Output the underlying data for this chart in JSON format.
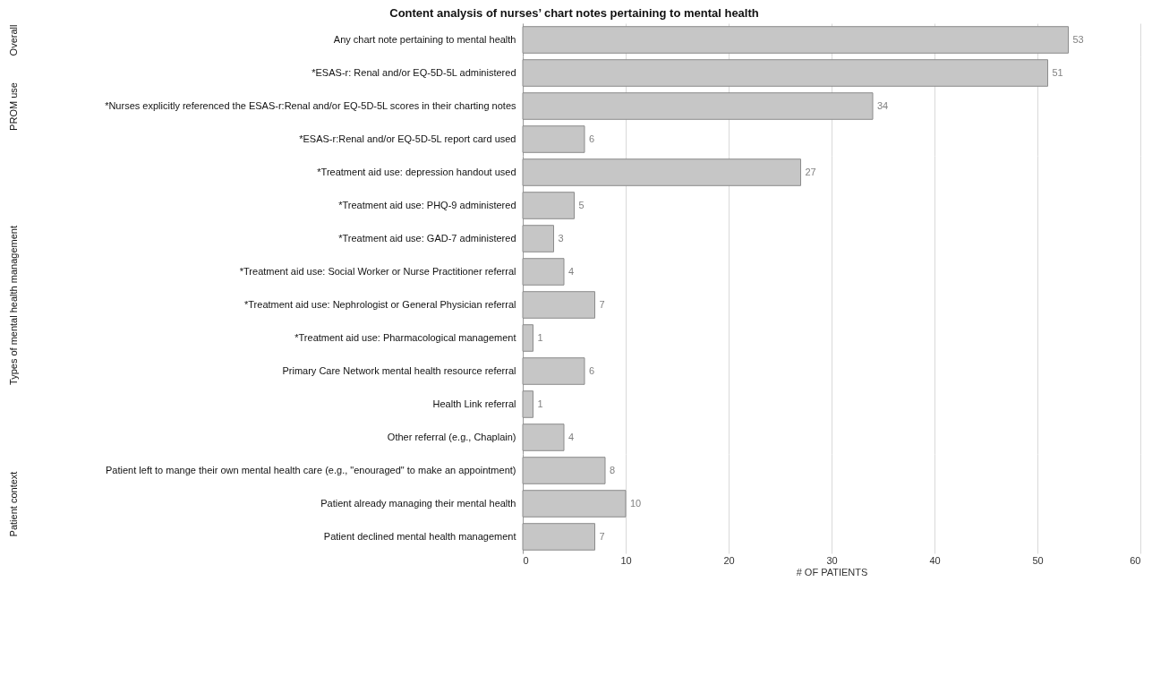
{
  "chart_data": [
    {
      "type": "bar",
      "orientation": "horizontal",
      "title": "Content analysis of nurses’ chart notes pertaining to mental health",
      "ylabel": "Overall",
      "categories": [
        "Any chart note pertaining to mental health"
      ],
      "values": [
        53
      ],
      "color": "#c6c6c6",
      "xlim": [
        0,
        60
      ],
      "xticks": [
        0,
        10,
        20,
        30,
        40,
        50,
        60
      ],
      "grid": "x",
      "data_labels": true,
      "tick_labels": "y"
    },
    {
      "type": "bar",
      "orientation": "horizontal",
      "ylabel": "PROM use",
      "categories": [
        "*ESAS-r: Renal and/or EQ-5D-5L administered",
        "*Nurses explicitly referenced the ESAS-r:Renal and/or EQ-5D-5L scores in their charting notes",
        "*ESAS-r:Renal and/or EQ-5D-5L report card used"
      ],
      "values": [
        51,
        34,
        6
      ],
      "color": "#c6c6c6",
      "xlim": [
        0,
        60
      ],
      "xticks": [
        0,
        10,
        20,
        30,
        40,
        50,
        60
      ],
      "grid": "x",
      "data_labels": true,
      "tick_labels": "y"
    },
    {
      "type": "bar",
      "orientation": "horizontal",
      "ylabel": "Types of mental health management",
      "categories": [
        "*Treatment aid use: depression handout used",
        "*Treatment aid use: PHQ-9 administered",
        "*Treatment aid use: GAD-7 administered",
        "*Treatment aid use: Social Worker or Nurse Practitioner referral",
        "*Treatment aid use: Nephrologist or General Physician referral",
        "*Treatment aid use: Pharmacological management",
        "Primary Care Network mental health resource referral",
        "Health Link referral",
        "Other referral (e.g., Chaplain)"
      ],
      "values": [
        27,
        5,
        3,
        4,
        7,
        1,
        6,
        1,
        4
      ],
      "color": "#c6c6c6",
      "xlim": [
        0,
        60
      ],
      "xticks": [
        0,
        10,
        20,
        30,
        40,
        50,
        60
      ],
      "grid": "x",
      "data_labels": true,
      "tick_labels": "y"
    },
    {
      "type": "bar",
      "orientation": "horizontal",
      "ylabel": "Patient context",
      "xlabel": "# OF PATIENTS",
      "categories": [
        "Patient left to mange their own mental health care (e.g., \"enouraged\" to make an appointment)",
        "Patient already managing their mental health",
        "Patient declined mental health management"
      ],
      "values": [
        8,
        10,
        7
      ],
      "color": "#c6c6c6",
      "xlim": [
        0,
        60
      ],
      "xticks": [
        0,
        10,
        20,
        30,
        40,
        50,
        60
      ],
      "grid": "x",
      "data_labels": true
    }
  ]
}
